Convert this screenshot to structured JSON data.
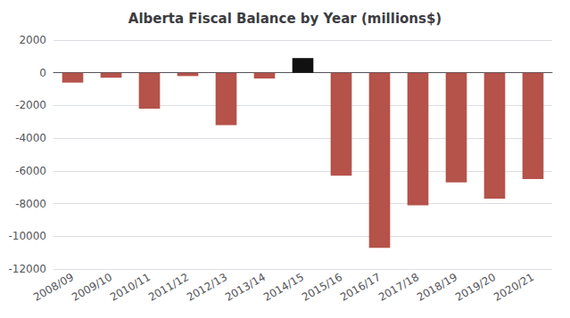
{
  "chart_data": {
    "type": "bar",
    "title": "Alberta Fiscal Balance by Year (millions$)",
    "categories": [
      "2008/09",
      "2009/10",
      "2010/11",
      "2011/12",
      "2012/13",
      "2013/14",
      "2014/15",
      "2015/16",
      "2016/17",
      "2017/18",
      "2018/19",
      "2019/20",
      "2020/21"
    ],
    "values": [
      -600,
      -300,
      -2200,
      -200,
      -3200,
      -350,
      900,
      -6300,
      -10700,
      -8100,
      -6700,
      -7700,
      -6500
    ],
    "colors": [
      "#b5524a",
      "#b5524a",
      "#b5524a",
      "#b5524a",
      "#b5524a",
      "#b5524a",
      "#111111",
      "#b5524a",
      "#b5524a",
      "#b5524a",
      "#b5524a",
      "#b5524a",
      "#b5524a"
    ],
    "ylim": [
      -12000,
      2000
    ],
    "yticks": [
      -12000,
      -10000,
      -8000,
      -6000,
      -4000,
      -2000,
      0,
      2000
    ],
    "grid": true
  }
}
